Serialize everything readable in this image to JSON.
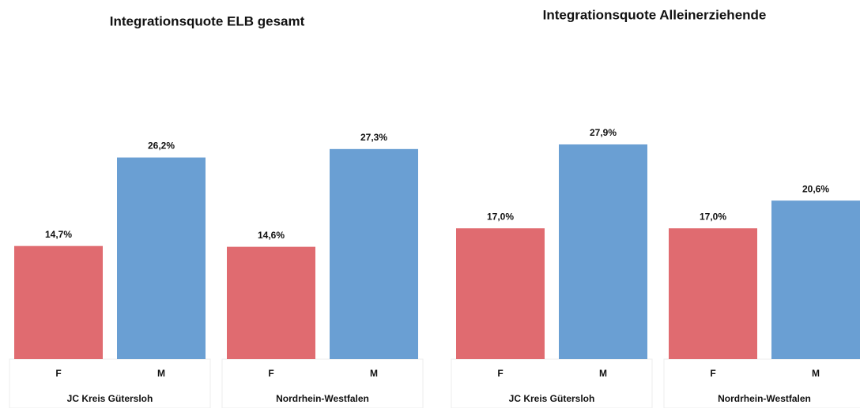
{
  "chart_data": [
    {
      "type": "bar",
      "title": "Integrationsquote ELB gesamt",
      "categories": [
        "JC Kreis Gütersloh",
        "Nordrhein-Westfalen"
      ],
      "series": [
        {
          "name": "F",
          "color": "#e06b70",
          "values": [
            14.7,
            14.6
          ],
          "value_labels": [
            "14,7%",
            "14,6%"
          ]
        },
        {
          "name": "M",
          "color": "#6a9fd3",
          "values": [
            26.2,
            27.3
          ],
          "value_labels": [
            "26,2%",
            "27,3%"
          ]
        }
      ]
    },
    {
      "type": "bar",
      "title": "Integrationsquote Alleinerziehende",
      "categories": [
        "JC Kreis Gütersloh",
        "Nordrhein-Westfalen"
      ],
      "series": [
        {
          "name": "F",
          "color": "#e06b70",
          "values": [
            17.0,
            17.0
          ],
          "value_labels": [
            "17,0%",
            "17,0%"
          ]
        },
        {
          "name": "M",
          "color": "#6a9fd3",
          "values": [
            27.9,
            20.6
          ],
          "value_labels": [
            "27,9%",
            "20,6%"
          ]
        }
      ]
    }
  ]
}
